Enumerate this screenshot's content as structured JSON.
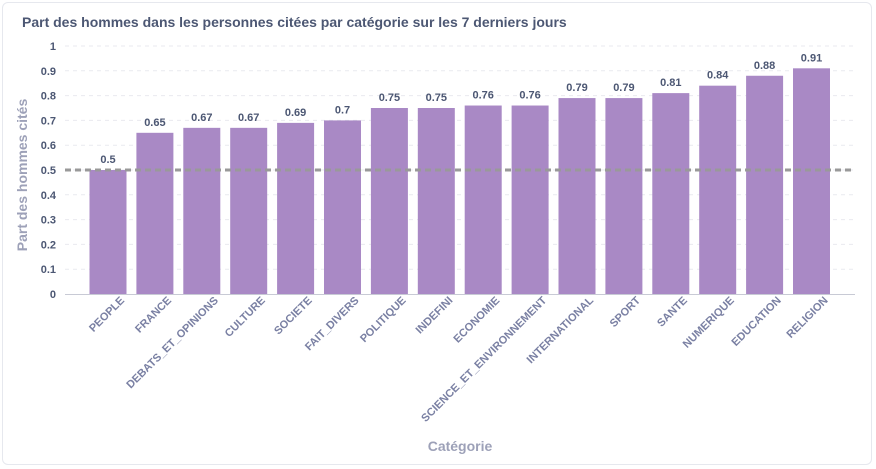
{
  "title": "Part des hommes dans les personnes citées par catégorie sur les 7 derniers jours",
  "colors": {
    "bar": "#a989c5",
    "reference_line": "#999999",
    "text": "#4c5773",
    "tick_x": "#7a80a3",
    "axis_title": "#9da1b8",
    "grid": "#e9eaef"
  },
  "chart_data": {
    "type": "bar",
    "categories": [
      "PEOPLE",
      "FRANCE",
      "DEBATS_ET_OPINIONS",
      "CULTURE",
      "SOCIETE",
      "FAIT_DIVERS",
      "POLITIQUE",
      "INDEFINI",
      "ECONOMIE",
      "SCIENCE_ET_ENVIRONNEMENT",
      "INTERNATIONAL",
      "SPORT",
      "SANTE",
      "NUMERIQUE",
      "EDUCATION",
      "RELIGION"
    ],
    "values": [
      0.5,
      0.65,
      0.67,
      0.67,
      0.69,
      0.7,
      0.75,
      0.75,
      0.76,
      0.76,
      0.79,
      0.79,
      0.81,
      0.84,
      0.88,
      0.91
    ],
    "data_labels": [
      "0.5",
      "0.65",
      "0.67",
      "0.67",
      "0.69",
      "0.7",
      "0.75",
      "0.75",
      "0.76",
      "0.76",
      "0.79",
      "0.79",
      "0.81",
      "0.84",
      "0.88",
      "0.91"
    ],
    "xlabel": "Catégorie",
    "ylabel": "Part des hommes cités",
    "ylim": [
      0,
      1
    ],
    "yticks": [
      "0",
      "0.1",
      "0.2",
      "0.3",
      "0.4",
      "0.5",
      "0.6",
      "0.7",
      "0.8",
      "0.9",
      "1"
    ],
    "reference_line": {
      "value": 0.5,
      "style": "dashed"
    },
    "grid": true,
    "legend": "none"
  }
}
